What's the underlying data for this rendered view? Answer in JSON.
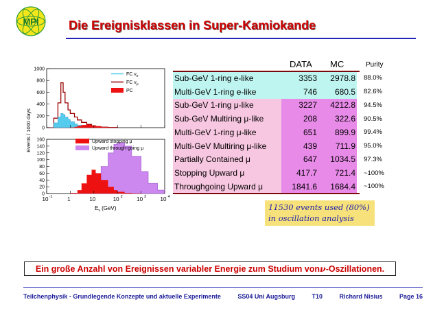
{
  "logo": {
    "text": "MPI"
  },
  "title": "Die Ereignisklassen in Super-Kamiokande",
  "plots": {
    "ylabel": "Events / 1000 days",
    "xlabel": "E",
    "xlabel_sub": "ν",
    "xlabel_unit": "(GeV)",
    "colors": {
      "fc_nue": "#55ccee",
      "fc_numu": "#990000",
      "pc": "#ee1111",
      "upward_stopping": "#ee1111",
      "upward_through": "#cc88ee"
    },
    "legend_top": [
      {
        "label": "FC ν",
        "sub": "e"
      },
      {
        "label": "FC ν",
        "sub": "μ"
      },
      {
        "label": "PC",
        "sub": ""
      }
    ],
    "legend_bottom": [
      "Upward stopping μ",
      "Upward through-going μ"
    ],
    "top_yticks": [
      "1000",
      "800",
      "600",
      "400",
      "200",
      "0"
    ],
    "bottom_yticks": [
      "160",
      "140",
      "120",
      "100",
      "80",
      "60",
      "40",
      "20",
      "0"
    ],
    "xticks": [
      {
        "base": "10",
        "exp": "-1"
      },
      {
        "base": "1",
        "exp": ""
      },
      {
        "base": "10",
        "exp": ""
      },
      {
        "base": "10",
        "exp": "2"
      },
      {
        "base": "10",
        "exp": "3"
      },
      {
        "base": "10",
        "exp": "4"
      }
    ]
  },
  "chart_data": [
    {
      "type": "area",
      "title": "",
      "xlabel": "Eν (GeV)",
      "ylabel": "Events / 1000 days",
      "xscale": "log",
      "xlim": [
        0.1,
        10000
      ],
      "ylim": [
        0,
        1000
      ],
      "legend": "top-right",
      "x": [
        0.1,
        0.2,
        0.3,
        0.4,
        0.5,
        0.6,
        0.8,
        1,
        1.5,
        2,
        3,
        5,
        8,
        12,
        20,
        40,
        100
      ],
      "series": [
        {
          "name": "FC νe",
          "values": [
            0,
            80,
            180,
            240,
            220,
            180,
            140,
            100,
            60,
            40,
            25,
            12,
            6,
            3,
            1,
            0,
            0
          ]
        },
        {
          "name": "FC νμ",
          "values": [
            0,
            160,
            420,
            760,
            600,
            420,
            300,
            240,
            180,
            130,
            90,
            55,
            30,
            15,
            8,
            3,
            0
          ]
        },
        {
          "name": "PC",
          "values": [
            0,
            0,
            0,
            0,
            0,
            0,
            0,
            5,
            15,
            30,
            45,
            50,
            35,
            25,
            12,
            5,
            0
          ]
        }
      ]
    },
    {
      "type": "area",
      "title": "",
      "xlabel": "Eν (GeV)",
      "ylabel": "Events / 1000 days",
      "xscale": "log",
      "xlim": [
        0.1,
        10000
      ],
      "ylim": [
        0,
        160
      ],
      "legend": "top-right",
      "x": [
        1,
        2,
        3,
        5,
        8,
        12,
        20,
        40,
        70,
        100,
        200,
        400,
        1000,
        2000,
        5000,
        10000
      ],
      "series": [
        {
          "name": "Upward stopping μ",
          "values": [
            2,
            10,
            30,
            55,
            70,
            60,
            40,
            20,
            10,
            5,
            2,
            1,
            0,
            0,
            0,
            0
          ]
        },
        {
          "name": "Upward through-going μ",
          "values": [
            0,
            0,
            2,
            5,
            15,
            40,
            80,
            120,
            145,
            150,
            140,
            110,
            65,
            30,
            10,
            0
          ]
        }
      ]
    }
  ],
  "table": {
    "col_data": "DATA",
    "col_mc": "MC",
    "col_purity": "Purity",
    "rows": [
      {
        "label": "Sub-GeV 1-ring e-like",
        "data": "3353",
        "mc": "2978.8",
        "purity": "88.0%",
        "group": "cyan"
      },
      {
        "label": "Multi-GeV 1-ring e-like",
        "data": "746",
        "mc": "680.5",
        "purity": "82.6%",
        "group": "cyan"
      },
      {
        "label": "Sub-GeV 1-ring μ-like",
        "data": "3227",
        "mc": "4212.8",
        "purity": "94.5%",
        "group": "pink"
      },
      {
        "label": "Sub-GeV Multiring μ-like",
        "data": "208",
        "mc": "322.6",
        "purity": "90.5%",
        "group": "pink"
      },
      {
        "label": "Multi-GeV 1-ring μ-like",
        "data": "651",
        "mc": "899.9",
        "purity": "99.4%",
        "group": "pink"
      },
      {
        "label": "Multi-GeV Multiring μ-like",
        "data": "439",
        "mc": "711.9",
        "purity": "95.0%",
        "group": "pink"
      },
      {
        "label": "Partially Contained μ",
        "data": "647",
        "mc": "1034.5",
        "purity": "97.3%",
        "group": "pink"
      },
      {
        "label": "Stopping Upward μ",
        "data": "417.7",
        "mc": "721.4",
        "purity": "~100%",
        "group": "pink"
      },
      {
        "label": "Throughgoing Upward μ",
        "data": "1841.6",
        "mc": "1684.4",
        "purity": "~100%",
        "group": "pink"
      }
    ]
  },
  "note": {
    "line1": "11530 events used (80%)",
    "line2": "in oscillation analysis"
  },
  "banner": {
    "text_before": "Ein große Anzahl von Ereignissen variabler Energie zum Studium von ",
    "nu": "ν",
    "text_after": "-Oszillationen."
  },
  "footer": {
    "course": "Teilchenphysik - Grundlegende Konzepte und aktuelle Experimente",
    "semester": "SS04 Uni Augsburg",
    "topic": "T10",
    "author": "Richard Nisius",
    "page": "Page 16"
  }
}
